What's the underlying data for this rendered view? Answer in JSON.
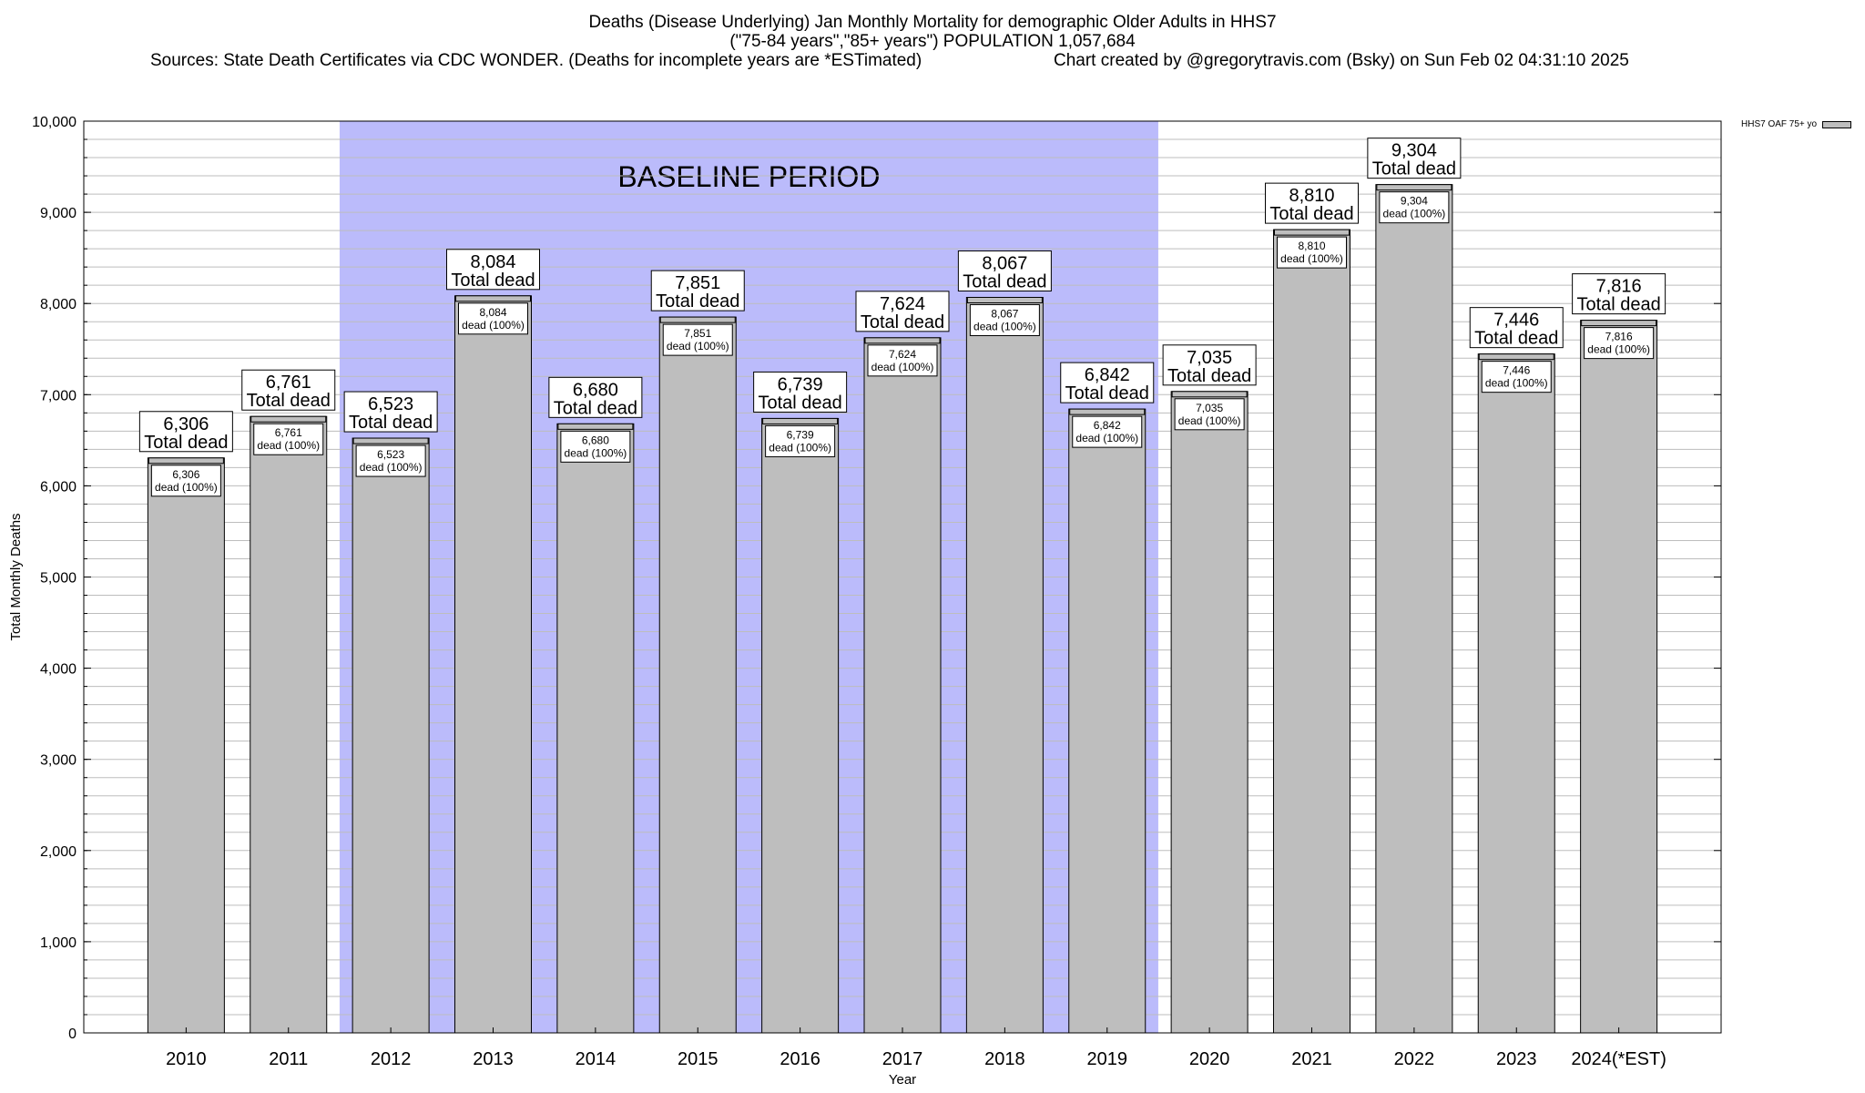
{
  "title": {
    "line1": "Deaths (Disease Underlying) Jan Monthly Mortality for demographic Older Adults in HHS7",
    "line2": "(\"75-84 years\",\"85+ years\") POPULATION 1,057,684",
    "sources": "Sources: State Death Certificates via CDC WONDER. (Deaths for incomplete years are *ESTimated)",
    "credit": "Chart created by @gregorytravis.com (Bsky) on Sun Feb 02 04:31:10 2025"
  },
  "legend": {
    "label": "HHS7 OAF 75+ yo"
  },
  "baseline_label": "BASELINE PERIOD",
  "chart_data": {
    "type": "bar",
    "categories": [
      "2010",
      "2011",
      "2012",
      "2013",
      "2014",
      "2015",
      "2016",
      "2017",
      "2018",
      "2019",
      "2020",
      "2021",
      "2022",
      "2023",
      "2024(*EST)"
    ],
    "series": [
      {
        "name": "HHS7 OAF 75+ yo",
        "values": [
          6306,
          6761,
          6523,
          8084,
          6680,
          7851,
          6739,
          7624,
          8067,
          6842,
          7035,
          8810,
          9304,
          7446,
          7816
        ]
      }
    ],
    "value_labels": [
      "6,306",
      "6,761",
      "6,523",
      "8,084",
      "6,680",
      "7,851",
      "6,739",
      "7,624",
      "8,067",
      "6,842",
      "7,035",
      "8,810",
      "9,304",
      "7,446",
      "7,816"
    ],
    "top_label_suffix": "Total dead",
    "inner_label_suffix": "dead (100%)",
    "xlabel": "Year",
    "ylabel": "Total Monthly Deaths",
    "ylim": [
      0,
      10000
    ],
    "yticks": [
      0,
      1000,
      2000,
      3000,
      4000,
      5000,
      6000,
      7000,
      8000,
      9000,
      10000
    ],
    "ytick_labels": [
      "0",
      "1,000",
      "2,000",
      "3,000",
      "4,000",
      "5,000",
      "6,000",
      "7,000",
      "8,000",
      "9,000",
      "10,000"
    ],
    "minor_ytick_step": 200,
    "baseline_period": [
      "2012",
      "2019"
    ],
    "colors": {
      "bar": "#bebebe",
      "baseline": "#bbbbfb",
      "grid": "#bdbdbd"
    },
    "grid": true,
    "legend_position": "top-right"
  }
}
